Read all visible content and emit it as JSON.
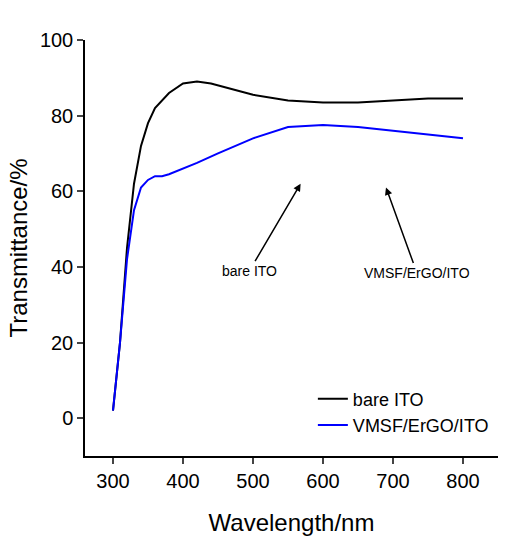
{
  "chart_data": {
    "type": "line",
    "x_label": "Wavelength/nm",
    "y_label": "Transmittance/%",
    "xlim": [
      260,
      850
    ],
    "xticks": [
      300,
      400,
      500,
      600,
      700,
      800
    ],
    "ylim": [
      -10,
      100
    ],
    "yticks": [
      0,
      20,
      40,
      60,
      80,
      100
    ],
    "grid": false,
    "legend": "lower right",
    "annotations": [
      "bare ITO",
      "VMSF/ErGO/ITO"
    ],
    "series": [
      {
        "name": "bare ITO",
        "color": "#000000",
        "x": [
          300,
          310,
          320,
          330,
          340,
          350,
          360,
          370,
          380,
          400,
          420,
          440,
          460,
          480,
          500,
          550,
          600,
          650,
          700,
          750,
          800
        ],
        "values": [
          2,
          20,
          45,
          62,
          72,
          78,
          82,
          84,
          86,
          88.5,
          89,
          88.5,
          87.5,
          86.5,
          85.5,
          84,
          83.5,
          83.5,
          84,
          84.5,
          84.5
        ]
      },
      {
        "name": "VMSF/ErGO/ITO",
        "color": "#0000ff",
        "x": [
          300,
          310,
          320,
          330,
          340,
          350,
          360,
          370,
          380,
          400,
          420,
          450,
          500,
          550,
          600,
          650,
          700,
          750,
          800
        ],
        "values": [
          2,
          20,
          42,
          55,
          61,
          63,
          64,
          64,
          64.5,
          66,
          67.5,
          70,
          74,
          77,
          77.5,
          77,
          76,
          75,
          74
        ]
      }
    ]
  }
}
